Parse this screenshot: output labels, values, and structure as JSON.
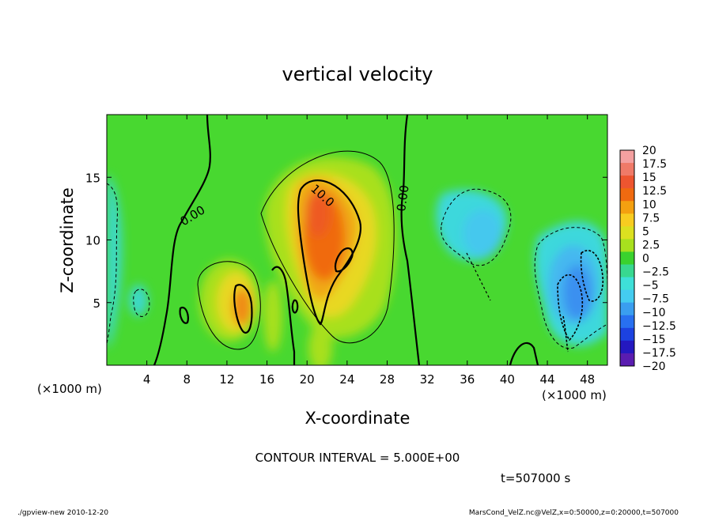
{
  "chart_data": {
    "type": "heatmap",
    "title": "vertical velocity",
    "xlabel": "X-coordinate",
    "ylabel": "Z-coordinate",
    "x_unit_left": "(×1000 m)",
    "x_unit_right": "(×1000 m)",
    "xlim": [
      0,
      50
    ],
    "ylim": [
      0,
      20
    ],
    "x_ticks": [
      4,
      8,
      12,
      16,
      20,
      24,
      28,
      32,
      36,
      40,
      44,
      48
    ],
    "y_ticks": [
      5,
      10,
      15
    ],
    "colorbar": {
      "labels": [
        "20",
        "17.5",
        "15",
        "12.5",
        "10",
        "7.5",
        "5",
        "2.5",
        "0",
        "−2.5",
        "−5",
        "−7.5",
        "−10",
        "−12.5",
        "−15",
        "−17.5",
        "−20"
      ],
      "colors": [
        "#f4a0a0",
        "#f07a68",
        "#ee5530",
        "#f06a10",
        "#f4a010",
        "#f8cc20",
        "#dce020",
        "#a8e01e",
        "#3ad22e",
        "#38d890",
        "#3ee0d8",
        "#44ccf0",
        "#3a9ef0",
        "#2870f0",
        "#1c42e0",
        "#2418c0",
        "#5a1cb0"
      ]
    },
    "contour_labels": [
      "0.00",
      "10.0",
      "0.00"
    ],
    "background_color": "#48d830",
    "features": [
      {
        "kind": "updraft",
        "x_center": 22,
        "z_center": 10,
        "w_max": 13
      },
      {
        "kind": "updraft",
        "x_center": 13.5,
        "z_center": 5.5,
        "w_max": 10
      },
      {
        "kind": "downdraft",
        "x_center": 47,
        "z_center": 6,
        "w_min": -12
      },
      {
        "kind": "downdraft",
        "x_center": 38,
        "z_center": 11,
        "w_min": -5
      }
    ]
  },
  "contour_interval_text": "CONTOUR INTERVAL = 5.000E+00",
  "time_text": "t=507000 s",
  "footer_left": "./gpview-new   2010-12-20",
  "footer_right": "MarsCond_VelZ.nc@VelZ,x=0:50000,z=0:20000,t=507000"
}
